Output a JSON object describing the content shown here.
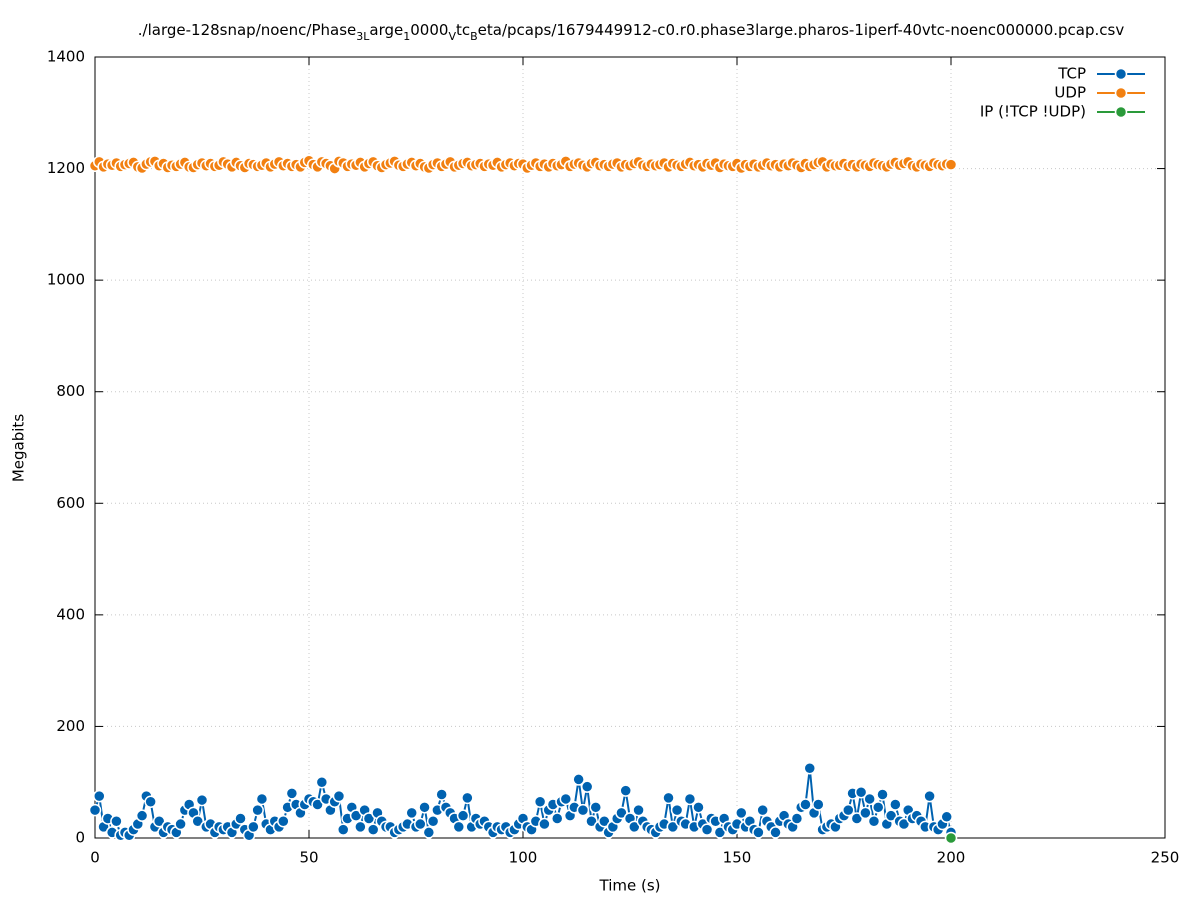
{
  "chart_data": {
    "type": "line",
    "title": [
      "./large-128snap/noenc/Phase",
      "3L",
      "arge",
      "1",
      "0000",
      "V",
      "tc",
      "B",
      "eta/pcaps/1679449912-c0.r0.phase3large.pharos-1iperf-40vtc-noenc000000.pcap.csv"
    ],
    "xlabel": "Time (s)",
    "ylabel": "Megabits",
    "xlim": [
      0,
      250
    ],
    "xticks": [
      0,
      50,
      100,
      150,
      200,
      250
    ],
    "ylim": [
      0,
      1400
    ],
    "yticks": [
      0,
      200,
      400,
      600,
      800,
      1000,
      1200,
      1400
    ],
    "grid": true,
    "legend": "upper right",
    "x": [
      0,
      1,
      2,
      3,
      4,
      5,
      6,
      7,
      8,
      9,
      10,
      11,
      12,
      13,
      14,
      15,
      16,
      17,
      18,
      19,
      20,
      21,
      22,
      23,
      24,
      25,
      26,
      27,
      28,
      29,
      30,
      31,
      32,
      33,
      34,
      35,
      36,
      37,
      38,
      39,
      40,
      41,
      42,
      43,
      44,
      45,
      46,
      47,
      48,
      49,
      50,
      51,
      52,
      53,
      54,
      55,
      56,
      57,
      58,
      59,
      60,
      61,
      62,
      63,
      64,
      65,
      66,
      67,
      68,
      69,
      70,
      71,
      72,
      73,
      74,
      75,
      76,
      77,
      78,
      79,
      80,
      81,
      82,
      83,
      84,
      85,
      86,
      87,
      88,
      89,
      90,
      91,
      92,
      93,
      94,
      95,
      96,
      97,
      98,
      99,
      100,
      101,
      102,
      103,
      104,
      105,
      106,
      107,
      108,
      109,
      110,
      111,
      112,
      113,
      114,
      115,
      116,
      117,
      118,
      119,
      120,
      121,
      122,
      123,
      124,
      125,
      126,
      127,
      128,
      129,
      130,
      131,
      132,
      133,
      134,
      135,
      136,
      137,
      138,
      139,
      140,
      141,
      142,
      143,
      144,
      145,
      146,
      147,
      148,
      149,
      150,
      151,
      152,
      153,
      154,
      155,
      156,
      157,
      158,
      159,
      160,
      161,
      162,
      163,
      164,
      165,
      166,
      167,
      168,
      169,
      170,
      171,
      172,
      173,
      174,
      175,
      176,
      177,
      178,
      179,
      180,
      181,
      182,
      183,
      184,
      185,
      186,
      187,
      188,
      189,
      190,
      191,
      192,
      193,
      194,
      195,
      196,
      197,
      198,
      199,
      200
    ],
    "series": [
      {
        "name": "TCP",
        "color": "#0062b0",
        "values": [
          50,
          75,
          20,
          35,
          10,
          30,
          5,
          10,
          5,
          15,
          25,
          40,
          75,
          65,
          20,
          30,
          10,
          20,
          15,
          10,
          25,
          50,
          60,
          45,
          30,
          68,
          20,
          25,
          10,
          20,
          15,
          20,
          10,
          25,
          35,
          15,
          5,
          20,
          50,
          70,
          25,
          15,
          30,
          20,
          30,
          55,
          80,
          60,
          45,
          60,
          70,
          65,
          60,
          100,
          70,
          50,
          65,
          75,
          15,
          35,
          55,
          40,
          20,
          50,
          35,
          15,
          45,
          30,
          20,
          20,
          10,
          15,
          20,
          25,
          45,
          20,
          25,
          55,
          10,
          30,
          50,
          78,
          55,
          45,
          35,
          20,
          40,
          72,
          20,
          35,
          25,
          30,
          20,
          10,
          20,
          15,
          20,
          10,
          15,
          25,
          35,
          20,
          15,
          30,
          65,
          25,
          50,
          60,
          35,
          65,
          70,
          40,
          55,
          105,
          50,
          92,
          30,
          55,
          20,
          30,
          10,
          20,
          35,
          45,
          85,
          35,
          20,
          50,
          30,
          20,
          15,
          10,
          20,
          25,
          72,
          20,
          50,
          30,
          25,
          70,
          20,
          55,
          25,
          15,
          35,
          30,
          10,
          35,
          20,
          15,
          25,
          45,
          20,
          30,
          15,
          10,
          50,
          30,
          20,
          10,
          30,
          40,
          25,
          20,
          35,
          55,
          60,
          125,
          45,
          60,
          15,
          20,
          25,
          20,
          35,
          40,
          50,
          80,
          35,
          82,
          45,
          70,
          30,
          55,
          78,
          25,
          40,
          60,
          30,
          25,
          50,
          35,
          40,
          30,
          20,
          75,
          20,
          15,
          25,
          38,
          10
        ]
      },
      {
        "name": "UDP",
        "color": "#f28011",
        "values": [
          1205,
          1212,
          1203,
          1208,
          1206,
          1210,
          1204,
          1207,
          1209,
          1211,
          1203,
          1201,
          1208,
          1212,
          1213,
          1205,
          1209,
          1202,
          1206,
          1204,
          1208,
          1211,
          1203,
          1202,
          1207,
          1210,
          1205,
          1209,
          1204,
          1206,
          1212,
          1208,
          1203,
          1211,
          1205,
          1202,
          1209,
          1207,
          1204,
          1206,
          1210,
          1203,
          1208,
          1212,
          1205,
          1209,
          1204,
          1207,
          1203,
          1211,
          1214,
          1207,
          1203,
          1212,
          1209,
          1205,
          1200,
          1213,
          1210,
          1204,
          1208,
          1206,
          1211,
          1203,
          1209,
          1212,
          1205,
          1202,
          1207,
          1210,
          1213,
          1206,
          1204,
          1208,
          1211,
          1205,
          1209,
          1203,
          1201,
          1207,
          1210,
          1204,
          1208,
          1212,
          1203,
          1206,
          1209,
          1211,
          1205,
          1207,
          1209,
          1204,
          1208,
          1206,
          1211,
          1203,
          1207,
          1210,
          1205,
          1209,
          1208,
          1201,
          1206,
          1210,
          1204,
          1208,
          1203,
          1209,
          1205,
          1207,
          1213,
          1204,
          1208,
          1210,
          1206,
          1203,
          1209,
          1211,
          1205,
          1207,
          1204,
          1208,
          1210,
          1203,
          1207,
          1205,
          1209,
          1212,
          1206,
          1204,
          1208,
          1205,
          1207,
          1210,
          1203,
          1209,
          1206,
          1204,
          1208,
          1211,
          1205,
          1207,
          1203,
          1209,
          1206,
          1210,
          1202,
          1208,
          1205,
          1204,
          1209,
          1201,
          1207,
          1204,
          1208,
          1203,
          1206,
          1210,
          1205,
          1207,
          1203,
          1208,
          1205,
          1210,
          1206,
          1202,
          1209,
          1204,
          1207,
          1211,
          1212,
          1203,
          1208,
          1205,
          1206,
          1209,
          1204,
          1207,
          1203,
          1208,
          1206,
          1204,
          1210,
          1207,
          1205,
          1203,
          1208,
          1211,
          1206,
          1209,
          1212,
          1205,
          1203,
          1208,
          1206,
          1204,
          1210,
          1207,
          1205,
          1208,
          1207
        ]
      },
      {
        "name": "IP (!TCP  !UDP)",
        "color": "#2a9a3a",
        "x": [
          200
        ],
        "values": [
          0
        ]
      }
    ]
  }
}
